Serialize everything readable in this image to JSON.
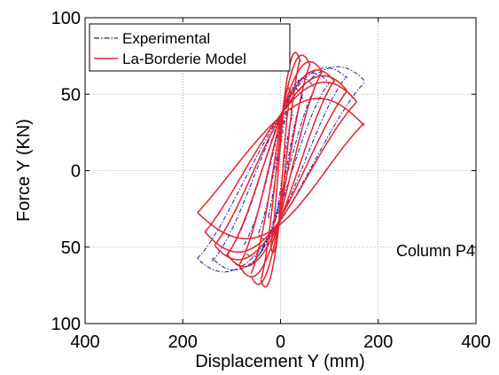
{
  "chart_data": {
    "type": "line",
    "title": "",
    "xlabel": "Displacement Y (mm)",
    "ylabel": "Force Y (KN)",
    "xlim": [
      -400,
      400
    ],
    "ylim": [
      -100,
      100
    ],
    "x_ticks": [
      -400,
      -200,
      0,
      200,
      400
    ],
    "y_ticks": [
      -100,
      -50,
      0,
      50,
      100
    ],
    "x_tick_labels": [
      "400",
      "200",
      "0",
      "200",
      "400"
    ],
    "y_tick_labels": [
      "100",
      "50",
      "0",
      "50",
      "100"
    ],
    "grid": true,
    "legend_position": "top-left",
    "annotation": "Column P4",
    "series": [
      {
        "name": "Experimental",
        "color": "#1a1aa6",
        "style": "dash-dot",
        "loops": [
          {
            "xmax": 25,
            "ymax": 36,
            "xmin": -25,
            "ymin": -30
          },
          {
            "xmax": 45,
            "ymax": 48,
            "xmin": -45,
            "ymin": -42
          },
          {
            "xmax": 70,
            "ymax": 55,
            "xmin": -75,
            "ymin": -50
          },
          {
            "xmax": 100,
            "ymax": 58,
            "xmin": -110,
            "ymin": -55
          },
          {
            "xmax": 135,
            "ymax": 60,
            "xmin": -140,
            "ymin": -58
          },
          {
            "xmax": 170,
            "ymax": 58,
            "xmin": -170,
            "ymin": -56
          }
        ]
      },
      {
        "name": "La-Borderie Model",
        "color": "#e8202a",
        "style": "solid",
        "loops": [
          {
            "xmax": 20,
            "ymax": 50,
            "xmin": -20,
            "ymin": -50
          },
          {
            "xmax": 40,
            "ymax": 72,
            "xmin": -40,
            "ymin": -72
          },
          {
            "xmax": 60,
            "ymax": 70,
            "xmin": -60,
            "ymin": -68
          },
          {
            "xmax": 85,
            "ymax": 65,
            "xmin": -85,
            "ymin": -62
          },
          {
            "xmax": 110,
            "ymax": 58,
            "xmin": -110,
            "ymin": -55
          },
          {
            "xmax": 135,
            "ymax": 52,
            "xmin": -135,
            "ymin": -48
          },
          {
            "xmax": 155,
            "ymax": 45,
            "xmin": -155,
            "ymin": -40
          },
          {
            "xmax": 170,
            "ymax": 30,
            "xmin": -170,
            "ymin": -28
          }
        ]
      }
    ]
  }
}
